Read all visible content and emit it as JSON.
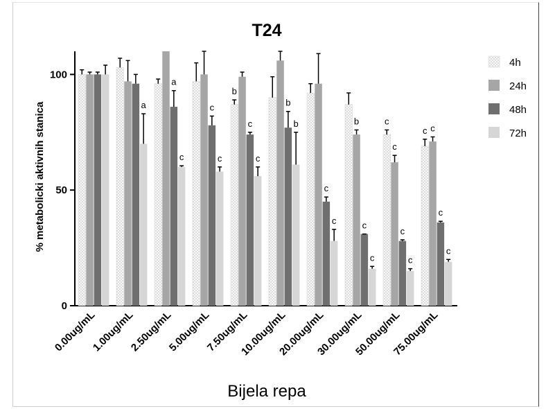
{
  "chart_data": {
    "type": "bar",
    "title": "T24",
    "xlabel": "Bijela repa",
    "ylabel": "% metabolicki aktivnih stanica",
    "ylim": [
      0,
      110
    ],
    "yticks": [
      0,
      50,
      100
    ],
    "grid": false,
    "legend_position": "right",
    "categories": [
      "0.00ug/mL",
      "1.00ug/mL",
      "2.50ug/mL",
      "5.00ug/mL",
      "7.50ug/mL",
      "10.00ug/mL",
      "20.00ug/mL",
      "30.00ug/mL",
      "50.00ug/mL",
      "75.00ug/mL"
    ],
    "series": [
      {
        "name": "4h",
        "color": "#f4f4f4",
        "pattern": "dots",
        "values": [
          100,
          103,
          96,
          97,
          87,
          90,
          92,
          87,
          74,
          69
        ],
        "errors": [
          2,
          4,
          2,
          8,
          2,
          9,
          4,
          5,
          2,
          3
        ],
        "sig": [
          "",
          "",
          "",
          "",
          "b",
          "",
          "",
          "",
          "c",
          "c"
        ]
      },
      {
        "name": "24h",
        "color": "#a6a6a6",
        "values": [
          100,
          97,
          110,
          100,
          99,
          106,
          96,
          74,
          62,
          71
        ],
        "errors": [
          1,
          9,
          0,
          10,
          2,
          4,
          13,
          2,
          3,
          2
        ],
        "sig": [
          "",
          "",
          "",
          "",
          "",
          "",
          "",
          "b",
          "c",
          "c"
        ]
      },
      {
        "name": "48h",
        "color": "#6f6f6f",
        "values": [
          100,
          96,
          86,
          78,
          74,
          77,
          45,
          31,
          28,
          36
        ],
        "errors": [
          1,
          4,
          7,
          4,
          1,
          7,
          2,
          0,
          0.5,
          0.5
        ],
        "sig": [
          "",
          "",
          "a",
          "c",
          "c",
          "b",
          "c",
          "c",
          "c",
          "c"
        ]
      },
      {
        "name": "72h",
        "color": "#d6d6d6",
        "values": [
          100,
          70,
          60,
          58,
          56,
          61,
          28,
          16,
          15,
          19
        ],
        "errors": [
          4,
          13,
          0.5,
          2,
          4,
          14,
          5,
          1,
          1,
          1
        ],
        "sig": [
          "",
          "a",
          "c",
          "c",
          "c",
          "b",
          "c",
          "c",
          "c",
          "c"
        ]
      }
    ]
  }
}
